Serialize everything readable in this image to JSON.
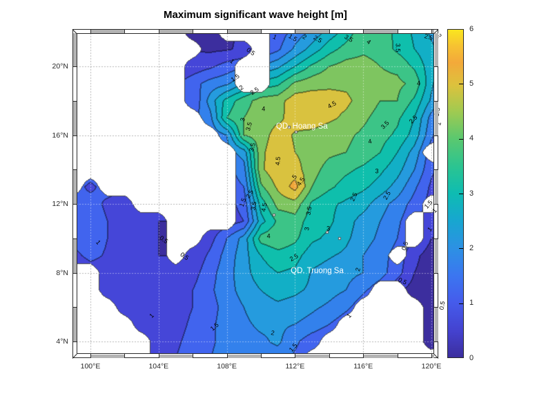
{
  "title": "Maximum significant wave height [m]",
  "axes": {
    "x_ticks": [
      {
        "label": "100°E",
        "lon": 100
      },
      {
        "label": "104°E",
        "lon": 104
      },
      {
        "label": "108°E",
        "lon": 108
      },
      {
        "label": "112°E",
        "lon": 112
      },
      {
        "label": "116°E",
        "lon": 116
      },
      {
        "label": "120°E",
        "lon": 120
      }
    ],
    "y_ticks": [
      {
        "label": "4°N",
        "lat": 4
      },
      {
        "label": "8°N",
        "lat": 8
      },
      {
        "label": "12°N",
        "lat": 12
      },
      {
        "label": "16°N",
        "lat": 16
      },
      {
        "label": "20°N",
        "lat": 20
      }
    ],
    "tick_color": "#262626",
    "grid_lons": [
      100,
      104,
      108,
      112,
      116,
      120
    ],
    "grid_lats": [
      4,
      8,
      12,
      16,
      20
    ],
    "ruler_interval_deg": 2
  },
  "colorbar": {
    "min": 0,
    "max": 6,
    "tick_labels": [
      "0",
      "1",
      "2",
      "3",
      "4",
      "5",
      "6"
    ],
    "border_color": "#2a2a2a",
    "gradient_stops": [
      [
        "0%",
        "#3C2E9E"
      ],
      [
        "8%",
        "#4442CF"
      ],
      [
        "17%",
        "#455CEC"
      ],
      [
        "25%",
        "#3B76F0"
      ],
      [
        "33%",
        "#2D90E4"
      ],
      [
        "42%",
        "#17A7CF"
      ],
      [
        "50%",
        "#0EBCB2"
      ],
      [
        "58%",
        "#2AC492"
      ],
      [
        "67%",
        "#5CC86E"
      ],
      [
        "75%",
        "#A0CA51"
      ],
      [
        "83%",
        "#DCC23D"
      ],
      [
        "90%",
        "#F3A93A"
      ],
      [
        "95%",
        "#F6C232"
      ],
      [
        "100%",
        "#FAE61F"
      ]
    ]
  },
  "chart_data": {
    "type": "filled_contour_map",
    "title": "Maximum significant wave height [m]",
    "units": "m",
    "lon_range_visible": [
      99.19,
      120.16
    ],
    "lat_range_visible": [
      3.28,
      21.93
    ],
    "levels": {
      "min": 0,
      "max": 6,
      "step": 0.5
    },
    "band_colors": [
      "#3C2E9E",
      "#4546D8",
      "#4164EE",
      "#3381EC",
      "#259BDE",
      "#12AFC6",
      "#0FBFAC",
      "#3CC487",
      "#7EC560",
      "#D9C23F",
      "#F0A73A",
      "#F7CE30"
    ],
    "land_color": "#ffffff",
    "coast_color": "#4d4d4d",
    "contour_line_darken": 0.58,
    "grid_lon_start": 99,
    "grid_lon_step": 1,
    "grid_lat_start": 22,
    "grid_lat_step": -1,
    "values": [
      [
        0.4,
        0.4,
        0.4,
        0.4,
        0.4,
        0.4,
        0.4,
        0.3,
        0.35,
        0.4,
        0.6,
        0.9,
        1.2,
        1.7,
        2.1,
        2.7,
        3.2,
        3.9,
        3.7,
        3.4,
        2.9,
        2.4,
        2.1
      ],
      [
        0.4,
        0.4,
        0.4,
        0.4,
        0.4,
        0.4,
        0.4,
        0.5,
        0.4,
        0.45,
        0.6,
        1.0,
        1.4,
        2.1,
        2.7,
        3.3,
        3.7,
        3.9,
        3.8,
        3.4,
        3.0,
        2.6,
        2.2
      ],
      [
        0.6,
        0.6,
        0.6,
        0.6,
        0.6,
        0.6,
        0.6,
        0.7,
        0.9,
        1.2,
        1.4,
        2.0,
        2.4,
        3.0,
        3.6,
        4.0,
        4.2,
        4.2,
        4.0,
        3.9,
        3.4,
        2.7,
        2.3
      ],
      [
        0.9,
        0.9,
        0.9,
        0.9,
        0.9,
        0.9,
        0.9,
        1.3,
        1.7,
        1.9,
        2.5,
        3.2,
        3.4,
        4.1,
        4.3,
        4.4,
        4.4,
        4.3,
        4.1,
        4.1,
        3.9,
        2.6,
        1.8
      ],
      [
        1.0,
        1.0,
        1.0,
        1.0,
        1.0,
        1.0,
        1.0,
        1.0,
        2.2,
        3.2,
        3.8,
        4.2,
        4.3,
        4.8,
        4.8,
        4.7,
        4.6,
        4.3,
        4.0,
        4.0,
        3.4,
        2.4,
        1.6
      ],
      [
        1.2,
        1.2,
        1.2,
        1.2,
        1.2,
        1.2,
        1.2,
        1.4,
        1.8,
        3.5,
        4.0,
        4.3,
        4.4,
        4.7,
        4.8,
        4.6,
        4.4,
        4.1,
        3.8,
        3.6,
        3.0,
        1.8,
        1.0
      ],
      [
        1.4,
        1.4,
        1.4,
        1.4,
        1.4,
        1.4,
        1.4,
        1.4,
        1.6,
        2.0,
        4.0,
        4.3,
        4.7,
        4.45,
        4.35,
        4.2,
        4.1,
        3.9,
        3.7,
        3.4,
        2.8,
        1.6,
        0.8
      ],
      [
        1.5,
        1.5,
        1.5,
        1.5,
        1.5,
        1.5,
        1.5,
        1.5,
        1.5,
        1.8,
        2.2,
        4.4,
        4.8,
        4.5,
        4.3,
        4.1,
        4.0,
        3.8,
        3.5,
        3.0,
        2.3,
        1.2,
        0.8
      ],
      [
        1.3,
        1.3,
        1.3,
        1.3,
        1.3,
        1.3,
        1.3,
        1.3,
        1.3,
        1.3,
        1.8,
        4.4,
        4.9,
        4.7,
        4.2,
        3.8,
        3.6,
        3.4,
        3.1,
        2.7,
        2.0,
        1.1,
        0.7
      ],
      [
        1.2,
        0.9,
        1.2,
        1.2,
        1.2,
        1.2,
        1.2,
        1.2,
        1.2,
        1.2,
        1.5,
        3.9,
        4.6,
        5.2,
        4.0,
        3.6,
        3.3,
        3.1,
        2.8,
        2.3,
        1.6,
        0.9,
        0.6
      ],
      [
        1.0,
        1.2,
        0.9,
        0.6,
        0.5,
        0.5,
        0.5,
        0.5,
        0.6,
        0.8,
        1.2,
        3.2,
        4.2,
        4.3,
        3.4,
        3.1,
        2.9,
        2.7,
        2.2,
        1.8,
        1.3,
        0.8,
        0.6
      ],
      [
        1.2,
        1.3,
        1.0,
        0.7,
        0.55,
        0.5,
        0.5,
        0.5,
        0.6,
        0.7,
        1.0,
        2.8,
        3.6,
        3.8,
        3.2,
        3.1,
        2.7,
        2.3,
        2.0,
        1.6,
        1.1,
        0.7,
        0.5
      ],
      [
        1.1,
        1.25,
        1.0,
        0.75,
        0.6,
        0.5,
        0.45,
        0.5,
        0.8,
        1.5,
        2.2,
        3.7,
        3.9,
        3.6,
        3.1,
        2.9,
        2.6,
        2.2,
        1.9,
        1.5,
        1.0,
        0.5,
        0.4
      ],
      [
        0.9,
        1.1,
        0.95,
        0.75,
        0.6,
        0.5,
        0.5,
        0.6,
        1.1,
        1.7,
        2.3,
        3.0,
        3.3,
        3.2,
        2.7,
        2.55,
        2.4,
        2.0,
        1.7,
        1.3,
        0.6,
        0.3,
        0.3
      ],
      [
        0.7,
        0.8,
        0.85,
        0.7,
        0.6,
        0.55,
        0.5,
        0.8,
        1.3,
        1.8,
        2.3,
        2.8,
        3.0,
        2.9,
        2.45,
        2.3,
        2.15,
        2.0,
        1.7,
        1.2,
        0.5,
        0.3,
        0.3
      ],
      [
        0.6,
        0.7,
        0.7,
        0.65,
        0.6,
        0.6,
        0.7,
        1.0,
        1.4,
        1.8,
        2.2,
        2.5,
        2.7,
        2.6,
        2.4,
        2.2,
        2.0,
        1.6,
        1.2,
        0.6,
        0.3,
        0.3,
        0.3
      ],
      [
        0.6,
        0.6,
        0.6,
        0.6,
        0.6,
        0.65,
        0.75,
        1.0,
        1.3,
        1.7,
        2.0,
        2.3,
        2.4,
        2.3,
        2.1,
        1.9,
        1.6,
        1.2,
        0.8,
        0.5,
        0.3,
        0.25,
        0.25
      ],
      [
        0.65,
        0.65,
        0.65,
        0.65,
        0.65,
        0.7,
        0.8,
        1.1,
        1.4,
        1.7,
        1.9,
        2.1,
        2.1,
        2.0,
        1.8,
        1.5,
        1.2,
        0.8,
        0.6,
        0.4,
        0.3,
        0.3,
        0.3
      ],
      [
        0.7,
        0.7,
        0.7,
        0.7,
        0.7,
        0.75,
        0.9,
        1.2,
        1.45,
        1.6,
        1.8,
        1.9,
        2.1,
        1.6,
        1.2,
        1.0,
        0.9,
        0.8,
        0.6,
        0.5,
        0.4,
        0.3,
        0.3
      ],
      [
        0.75,
        0.75,
        0.75,
        0.75,
        0.75,
        0.8,
        1.0,
        1.3,
        1.5,
        1.6,
        1.7,
        1.8,
        1.7,
        1.4,
        1.1,
        0.9,
        0.7,
        0.6,
        0.5,
        0.4,
        0.4,
        0.4,
        0.4
      ]
    ],
    "land_mask": [
      "11111110011100000000000",
      "11111111000100000000000",
      "11111110001100000000001",
      "11111110001100000000000",
      "11111110000000000000000",
      "11111111000000000000001",
      "11111111100000000000001",
      "11111111110000000000011",
      "11111111110000000000001",
      "10111111110000000000001",
      "00001111110000000000010",
      "00000011110000000000100",
      "00000011000000000000100",
      "00000010000000000001000",
      "11000000000000000000000",
      "11000000000000000011000",
      "11100000000000000111100",
      "11110000000000001111100",
      "11111000000000011111101",
      "11111000000000111111111"
    ],
    "contour_labels": [
      {
        "t": "0.5",
        "lon": 109.4,
        "lat": 20.85,
        "rot": 35
      },
      {
        "t": "1",
        "lon": 108.3,
        "lat": 20.3,
        "rot": 40
      },
      {
        "t": "1",
        "lon": 110.8,
        "lat": 21.7,
        "rot": 25
      },
      {
        "t": "1.5",
        "lon": 111.85,
        "lat": 21.65,
        "rot": 30
      },
      {
        "t": "2",
        "lon": 112.55,
        "lat": 21.7,
        "rot": 30
      },
      {
        "t": "2.5",
        "lon": 113.3,
        "lat": 21.55,
        "rot": 30
      },
      {
        "t": "3.5",
        "lon": 115.15,
        "lat": 21.6,
        "rot": 30
      },
      {
        "t": "4",
        "lon": 116.3,
        "lat": 21.4,
        "rot": 35
      },
      {
        "t": "3.5",
        "lon": 118.0,
        "lat": 21.1,
        "rot": 90
      },
      {
        "t": "2.5",
        "lon": 119.85,
        "lat": 21.7,
        "rot": 15
      },
      {
        "t": "2",
        "lon": 120.45,
        "lat": 21.75,
        "rot": 55
      },
      {
        "t": "1.5",
        "lon": 108.5,
        "lat": 19.3,
        "rot": -35
      },
      {
        "t": "2",
        "lon": 108.85,
        "lat": 18.75,
        "rot": -35
      },
      {
        "t": "2.5",
        "lon": 109.65,
        "lat": 18.55,
        "rot": -35
      },
      {
        "t": "4",
        "lon": 110.15,
        "lat": 17.5,
        "rot": 0
      },
      {
        "t": "3",
        "lon": 108.95,
        "lat": 16.9,
        "rot": -75
      },
      {
        "t": "3.5",
        "lon": 109.3,
        "lat": 16.5,
        "rot": -75
      },
      {
        "t": "3.5",
        "lon": 109.5,
        "lat": 15.3,
        "rot": -75
      },
      {
        "t": "4.5",
        "lon": 111.0,
        "lat": 14.5,
        "rot": -85
      },
      {
        "t": "4.5",
        "lon": 114.15,
        "lat": 17.75,
        "rot": -30
      },
      {
        "t": "5",
        "lon": 112.0,
        "lat": 13.55,
        "rot": -55
      },
      {
        "t": "4.5",
        "lon": 112.35,
        "lat": 13.3,
        "rot": -55
      },
      {
        "t": "4.5",
        "lon": 110.2,
        "lat": 11.8,
        "rot": -80
      },
      {
        "t": "4",
        "lon": 110.45,
        "lat": 10.1,
        "rot": 0
      },
      {
        "t": "3.5",
        "lon": 109.6,
        "lat": 11.9,
        "rot": -80
      },
      {
        "t": "2.5",
        "lon": 109.35,
        "lat": 12.55,
        "rot": -60
      },
      {
        "t": "1.5",
        "lon": 108.95,
        "lat": 12.1,
        "rot": -70
      },
      {
        "t": "3.5",
        "lon": 112.85,
        "lat": 11.6,
        "rot": -80
      },
      {
        "t": "3",
        "lon": 112.7,
        "lat": 10.55,
        "rot": -85
      },
      {
        "t": "3",
        "lon": 113.95,
        "lat": 10.55,
        "rot": 0
      },
      {
        "t": "2.5",
        "lon": 111.95,
        "lat": 8.85,
        "rot": -30
      },
      {
        "t": "2",
        "lon": 115.7,
        "lat": 8.2,
        "rot": -75
      },
      {
        "t": "2.5",
        "lon": 115.45,
        "lat": 12.4,
        "rot": -65
      },
      {
        "t": "2.5",
        "lon": 117.4,
        "lat": 12.5,
        "rot": -60
      },
      {
        "t": "3",
        "lon": 116.8,
        "lat": 13.9,
        "rot": 0
      },
      {
        "t": "3.5",
        "lon": 117.3,
        "lat": 16.6,
        "rot": -45
      },
      {
        "t": "4",
        "lon": 116.4,
        "lat": 15.6,
        "rot": -10
      },
      {
        "t": "4",
        "lon": 119.25,
        "lat": 19.0,
        "rot": 0
      },
      {
        "t": "2.5",
        "lon": 118.95,
        "lat": 16.9,
        "rot": -45
      },
      {
        "t": "1.5",
        "lon": 120.35,
        "lat": 17.35,
        "rot": -80
      },
      {
        "t": "1",
        "lon": 120.45,
        "lat": 16.65,
        "rot": -75
      },
      {
        "t": "1.5",
        "lon": 119.85,
        "lat": 11.95,
        "rot": -50
      },
      {
        "t": "1",
        "lon": 120.2,
        "lat": 11.6,
        "rot": -50
      },
      {
        "t": "1",
        "lon": 119.9,
        "lat": 10.5,
        "rot": -50
      },
      {
        "t": "0.5",
        "lon": 118.45,
        "lat": 9.55,
        "rot": -70
      },
      {
        "t": "0.5",
        "lon": 118.3,
        "lat": 7.5,
        "rot": 25
      },
      {
        "t": "0.5",
        "lon": 120.65,
        "lat": 6.1,
        "rot": -80
      },
      {
        "t": "1",
        "lon": 115.2,
        "lat": 5.5,
        "rot": -45
      },
      {
        "t": "1.5",
        "lon": 107.3,
        "lat": 4.85,
        "rot": -40
      },
      {
        "t": "1.5",
        "lon": 111.9,
        "lat": 3.65,
        "rot": -50
      },
      {
        "t": "2",
        "lon": 110.7,
        "lat": 4.5,
        "rot": 10
      },
      {
        "t": "1",
        "lon": 100.45,
        "lat": 9.75,
        "rot": 50
      },
      {
        "t": "0.5",
        "lon": 104.3,
        "lat": 9.9,
        "rot": 35
      },
      {
        "t": "0.5",
        "lon": 105.5,
        "lat": 8.95,
        "rot": 35
      },
      {
        "t": "1",
        "lon": 103.6,
        "lat": 5.5,
        "rot": -45
      }
    ],
    "annotations": [
      {
        "text": "QD. Hoang Sa",
        "lon": 112.4,
        "lat": 16.5
      },
      {
        "text": "QD. Truong Sa",
        "lon": 113.3,
        "lat": 8.1
      }
    ],
    "islands": [
      [
        111.65,
        16.45
      ],
      [
        112.05,
        16.2
      ],
      [
        113.9,
        10.35
      ],
      [
        114.6,
        10.0
      ],
      [
        110.75,
        11.35
      ]
    ]
  }
}
